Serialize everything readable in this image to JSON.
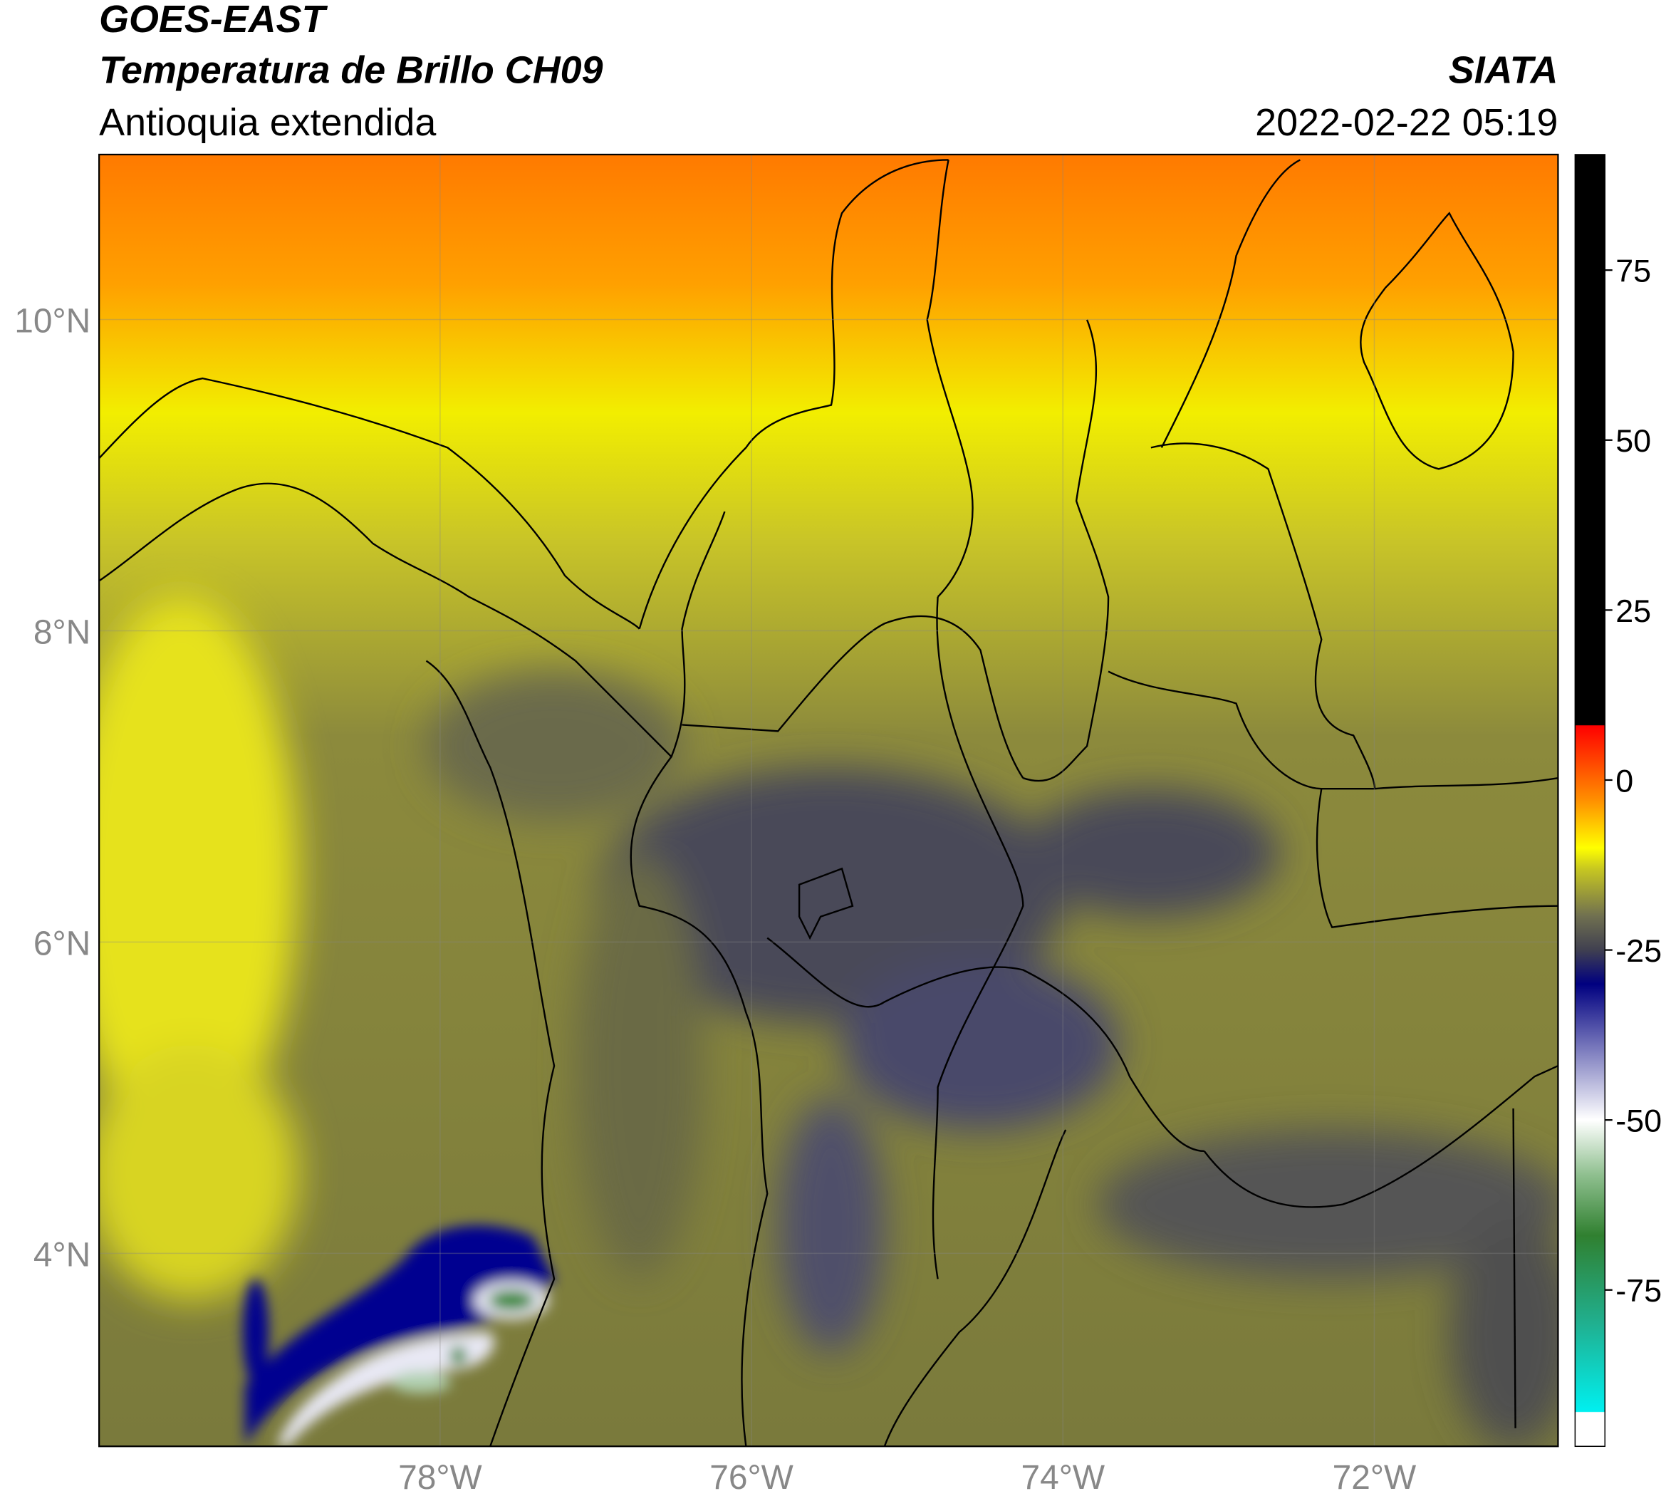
{
  "header": {
    "title": "GOES-EAST",
    "subtitle": "Temperatura de Brillo CH09",
    "region": "Antioquia extendida",
    "source": "SIATA",
    "datetime": "2022-02-22 05:19"
  },
  "map": {
    "xlim": [
      -80.19,
      -70.82
    ],
    "ylim": [
      2.76,
      11.06
    ],
    "xticks": [
      {
        "value": -78,
        "label": "78°W"
      },
      {
        "value": -76,
        "label": "76°W"
      },
      {
        "value": -74,
        "label": "74°W"
      },
      {
        "value": -72,
        "label": "72°W"
      }
    ],
    "yticks": [
      {
        "value": 4,
        "label": "4°N"
      },
      {
        "value": 6,
        "label": "6°N"
      },
      {
        "value": 8,
        "label": "8°N"
      },
      {
        "value": 10,
        "label": "10°N"
      }
    ],
    "grid": true
  },
  "colorbar": {
    "clim": [
      -98,
      92
    ],
    "ticks": [
      -75,
      -50,
      -25,
      0,
      25,
      50,
      75
    ],
    "stops": [
      {
        "value": -98,
        "color": "#ffffff"
      },
      {
        "value": -93,
        "color": "#ffffff"
      },
      {
        "value": -92.9,
        "color": "#00f0f0"
      },
      {
        "value": -80,
        "color": "#20b090"
      },
      {
        "value": -67,
        "color": "#308030"
      },
      {
        "value": -58,
        "color": "#90c090"
      },
      {
        "value": -50,
        "color": "#ffffff"
      },
      {
        "value": -40,
        "color": "#8080c0"
      },
      {
        "value": -30,
        "color": "#000080"
      },
      {
        "value": -25,
        "color": "#404050"
      },
      {
        "value": -20,
        "color": "#707050"
      },
      {
        "value": -13,
        "color": "#c8c820"
      },
      {
        "value": -10,
        "color": "#ffff00"
      },
      {
        "value": -3,
        "color": "#ff9000"
      },
      {
        "value": 8,
        "color": "#ff0000"
      },
      {
        "value": 8.1,
        "color": "#000000"
      },
      {
        "value": 92,
        "color": "#000000"
      }
    ]
  }
}
